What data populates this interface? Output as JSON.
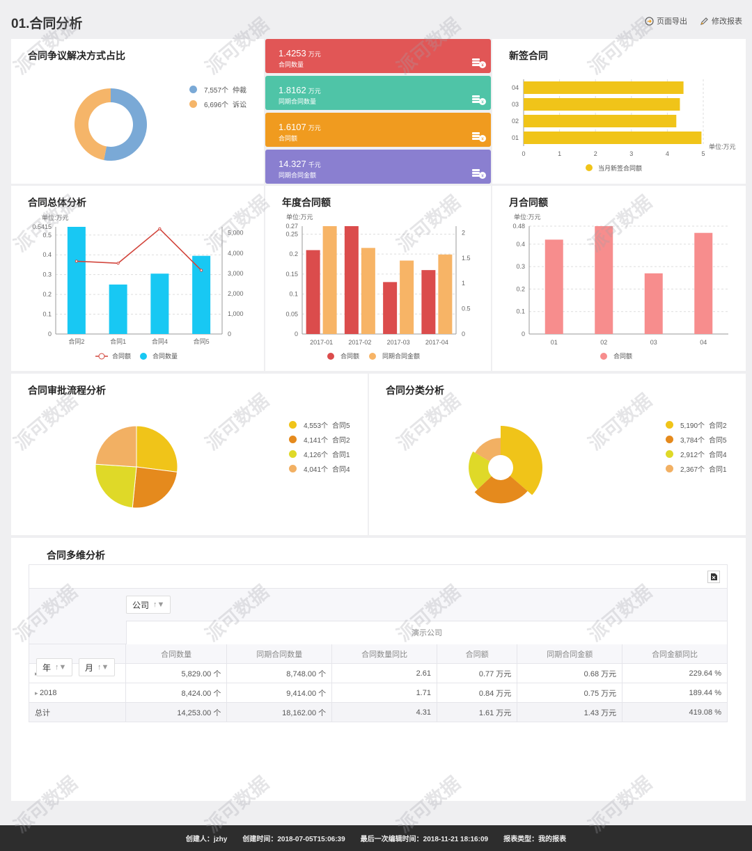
{
  "page": {
    "title": "01.合同分析"
  },
  "actions": {
    "export_label": "页面导出",
    "edit_label": "修改报表"
  },
  "dispute": {
    "title": "合同争议解决方式占比",
    "items": [
      {
        "value": "7,557个",
        "name": "仲裁",
        "color": "#7aa9d6"
      },
      {
        "value": "6,696个",
        "name": "诉讼",
        "color": "#f5b569"
      }
    ]
  },
  "kpis": [
    {
      "value": "1.4253",
      "unit": "万元",
      "label": "合同数量",
      "color": "#e15656"
    },
    {
      "value": "1.8162",
      "unit": "万元",
      "label": "同期合同数量",
      "color": "#4fc4a7"
    },
    {
      "value": "1.6107",
      "unit": "万元",
      "label": "合同额",
      "color": "#f09b1f"
    },
    {
      "value": "14.327",
      "unit": "千元",
      "label": "同期合同金额",
      "color": "#8a7fd0"
    }
  ],
  "new_contract": {
    "title": "新签合同",
    "unit": "单位:万元",
    "legend": "当月新签合同额"
  },
  "overall": {
    "title": "合同总体分析",
    "unit": "单位:万元",
    "legend_line": "合同额",
    "legend_bar": "合同数量",
    "top_label": "0.5415"
  },
  "yearly": {
    "title": "年度合同额",
    "unit": "单位:万元",
    "legend_a": "合同额",
    "legend_b": "同期合同金额",
    "top_label": "0.27"
  },
  "monthly": {
    "title": "月合同额",
    "unit": "单位:万元",
    "legend": "合同额",
    "top_label": "0.48"
  },
  "approval": {
    "title": "合同审批流程分析",
    "items": [
      {
        "value": "4,553个",
        "name": "合同5",
        "color": "#f0c419"
      },
      {
        "value": "4,141个",
        "name": "合同2",
        "color": "#e58a1d"
      },
      {
        "value": "4,126个",
        "name": "合同1",
        "color": "#dfd928"
      },
      {
        "value": "4,041个",
        "name": "合同4",
        "color": "#f2b063"
      }
    ]
  },
  "category": {
    "title": "合同分类分析",
    "items": [
      {
        "value": "5,190个",
        "name": "合同2",
        "color": "#f0c419"
      },
      {
        "value": "3,784个",
        "name": "合同5",
        "color": "#e58a1d"
      },
      {
        "value": "2,912个",
        "name": "合同4",
        "color": "#dfd928"
      },
      {
        "value": "2,367个",
        "name": "合同1",
        "color": "#f2b063"
      }
    ]
  },
  "pivot": {
    "title": "合同多维分析",
    "filter_company": "公司",
    "filter_year": "年",
    "filter_month": "月",
    "company": "演示公司",
    "columns": [
      "合同数量",
      "同期合同数量",
      "合同数量同比",
      "合同额",
      "同期合同金额",
      "合同金额同比"
    ],
    "rows": [
      {
        "label": "2017",
        "cells": [
          "5,829.00 个",
          "8,748.00 个",
          "2.61",
          "0.77 万元",
          "0.68 万元",
          "229.64 %"
        ]
      },
      {
        "label": "2018",
        "cells": [
          "8,424.00 个",
          "9,414.00 个",
          "1.71",
          "0.84 万元",
          "0.75 万元",
          "189.44 %"
        ]
      },
      {
        "label": "总计",
        "cells": [
          "14,253.00 个",
          "18,162.00 个",
          "4.31",
          "1.61 万元",
          "1.43 万元",
          "419.08 %"
        ]
      }
    ]
  },
  "footer": {
    "creator": "创建人：jzhy",
    "created": "创建时间：2018-07-05T15:06:39",
    "edited": "最后一次编辑时间：2018-11-21 18:16:09",
    "type": "报表类型：我的报表"
  },
  "watermark": "派可数据",
  "chart_data": [
    {
      "type": "pie",
      "name": "dispute",
      "categories": [
        "仲裁",
        "诉讼"
      ],
      "values": [
        7557,
        6696
      ]
    },
    {
      "type": "bar",
      "name": "new_contract",
      "categories": [
        "01",
        "02",
        "03",
        "04"
      ],
      "values": [
        4.95,
        4.25,
        4.35,
        4.45
      ],
      "xlim": [
        0,
        5
      ],
      "xticks": [
        0,
        1,
        2,
        3,
        4,
        5
      ],
      "colors": [
        "#f0c419"
      ]
    },
    {
      "type": "bar",
      "name": "overall",
      "categories": [
        "合同2",
        "合同1",
        "合同4",
        "合同5"
      ],
      "series": [
        {
          "name": "合同数量",
          "values": [
            0.5415,
            0.25,
            0.305,
            0.395
          ]
        },
        {
          "name": "合同额",
          "values": [
            3600,
            3500,
            5200,
            3150
          ]
        }
      ],
      "ylim": [
        0,
        0.5415
      ],
      "yticks": [
        0,
        0.1,
        0.2,
        0.3,
        0.4,
        0.5
      ],
      "y2lim": [
        0,
        5300
      ],
      "y2ticks": [
        0,
        1000,
        2000,
        3000,
        4000,
        5000
      ],
      "y2ticklabels": [
        "0",
        "1,000",
        "2,000",
        "3,000",
        "4,000",
        "5,000"
      ]
    },
    {
      "type": "bar",
      "name": "yearly",
      "categories": [
        "2017-01",
        "2017-02",
        "2017-03",
        "2017-04"
      ],
      "series": [
        {
          "name": "合同额",
          "values": [
            0.21,
            0.27,
            0.13,
            0.16
          ]
        },
        {
          "name": "同期合同金额",
          "values": [
            2.13,
            1.7,
            1.45,
            1.57
          ]
        }
      ],
      "ylim": [
        0,
        0.27
      ],
      "yticks": [
        0,
        0.05,
        0.1,
        0.15,
        0.2,
        0.25
      ],
      "y2lim": [
        0,
        2.13
      ],
      "y2ticks": [
        0,
        0.5,
        1,
        1.5,
        2
      ]
    },
    {
      "type": "bar",
      "name": "monthly",
      "categories": [
        "01",
        "02",
        "03",
        "04"
      ],
      "values": [
        0.42,
        0.48,
        0.27,
        0.45
      ],
      "ylim": [
        0,
        0.48
      ],
      "yticks": [
        0,
        0.1,
        0.2,
        0.3,
        0.4
      ],
      "colors": [
        "#f78d8d"
      ]
    },
    {
      "type": "pie",
      "name": "approval",
      "categories": [
        "合同5",
        "合同2",
        "合同1",
        "合同4"
      ],
      "values": [
        4553,
        4141,
        4126,
        4041
      ]
    },
    {
      "type": "pie",
      "name": "category",
      "categories": [
        "合同2",
        "合同5",
        "合同4",
        "合同1"
      ],
      "values": [
        5190,
        3784,
        2912,
        2367
      ]
    }
  ]
}
